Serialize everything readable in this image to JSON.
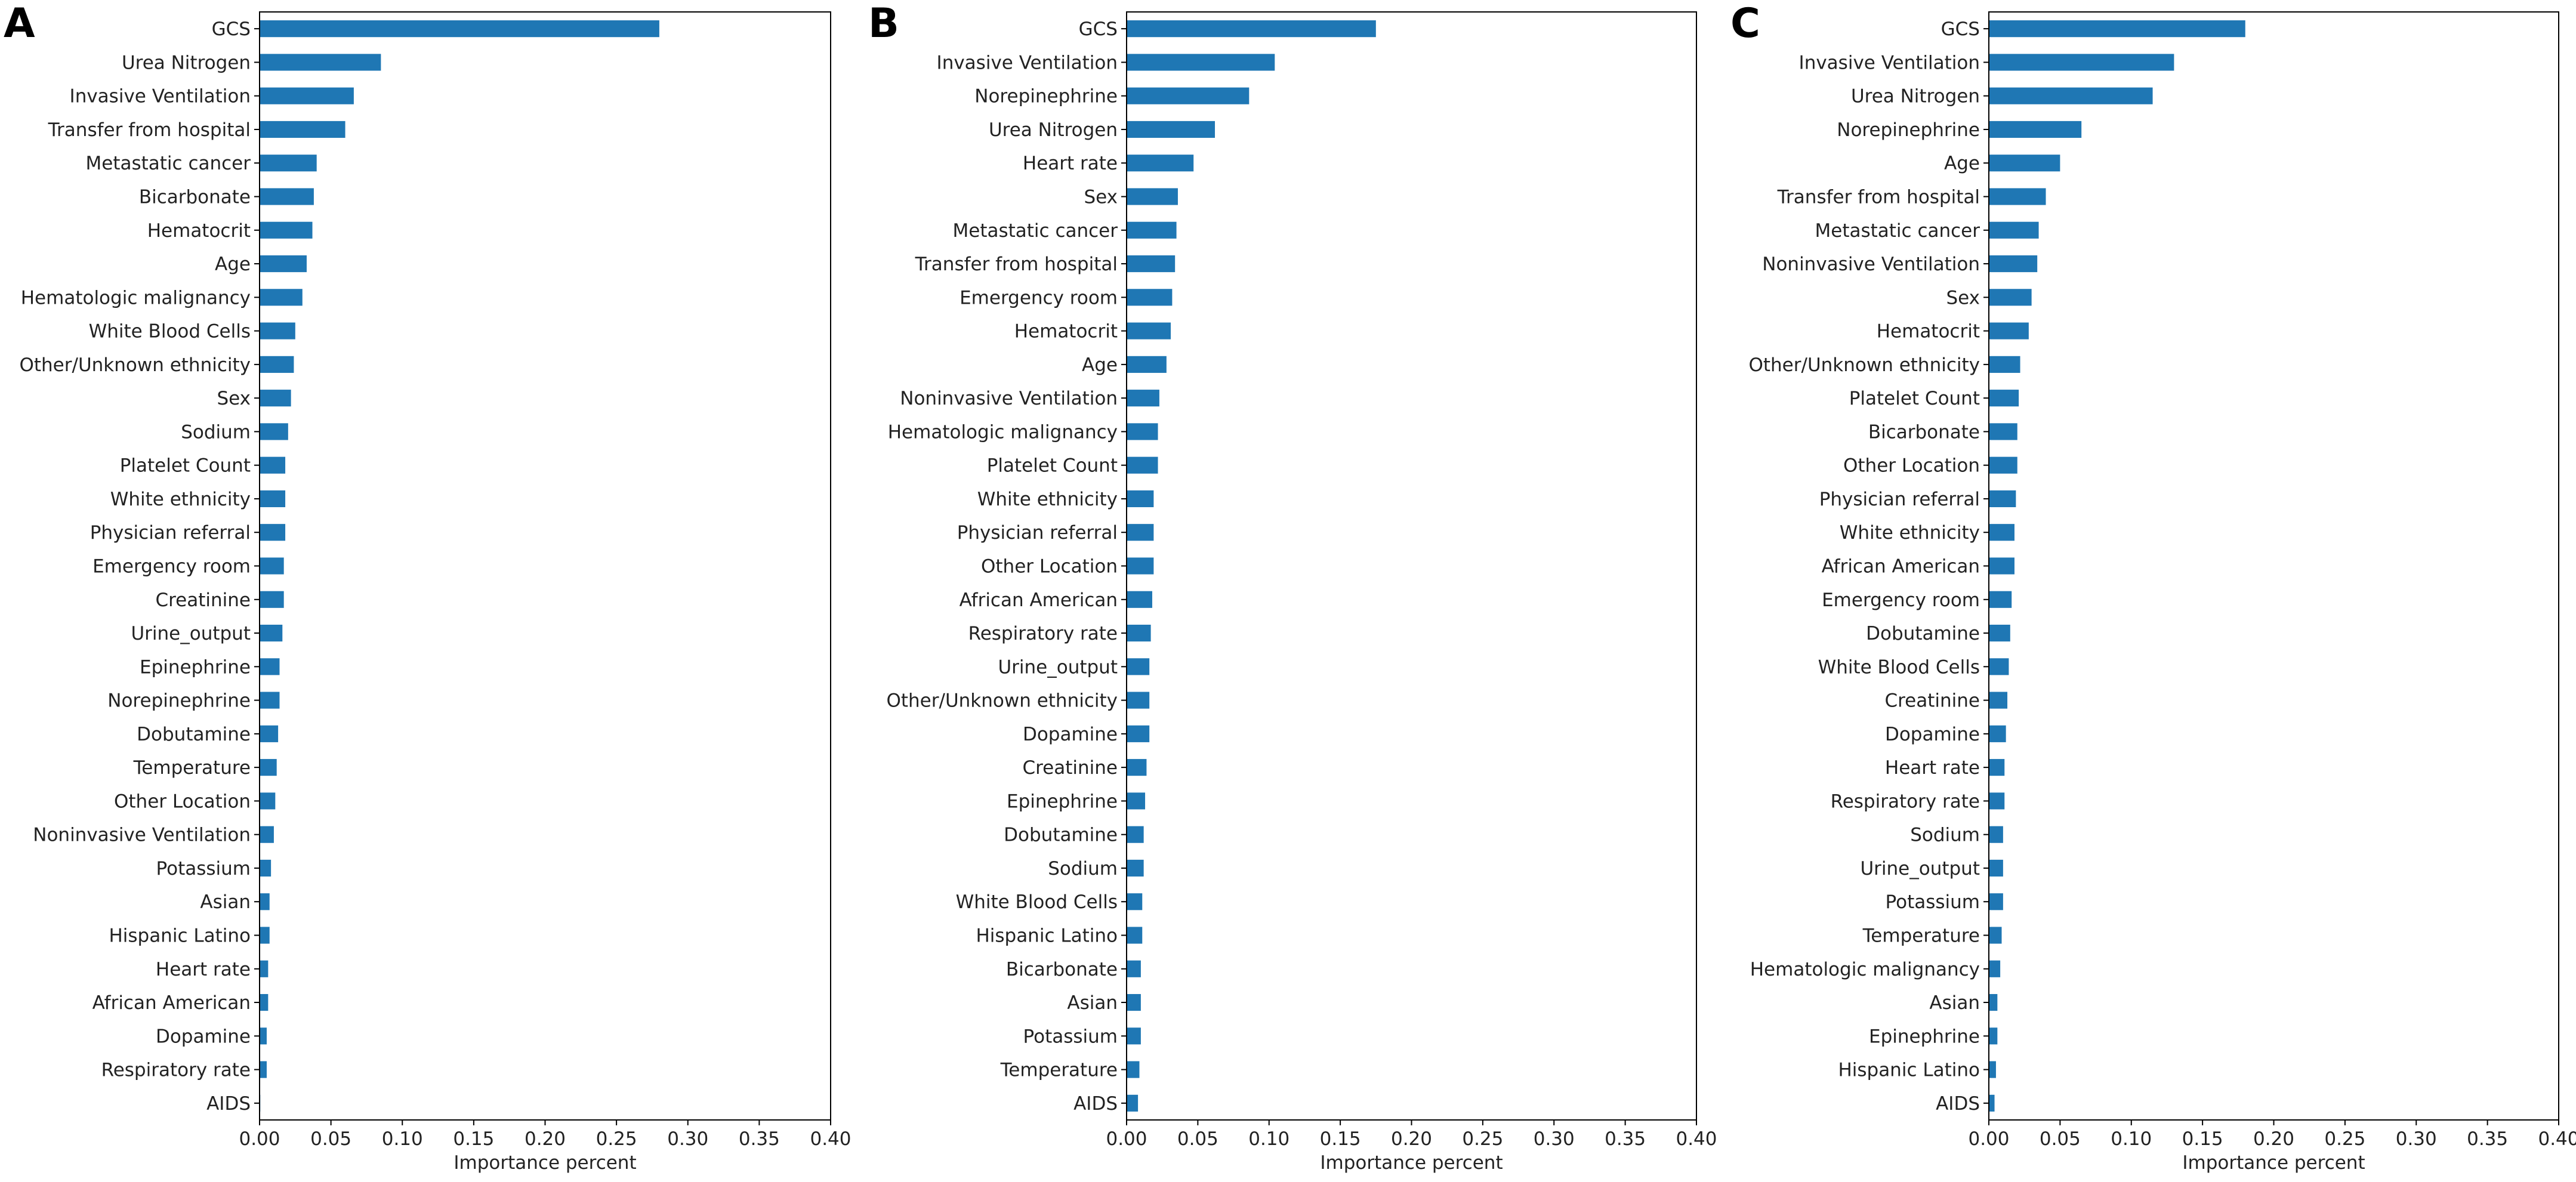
{
  "chart_data": [
    {
      "type": "bar",
      "orientation": "horizontal",
      "panel_label": "A",
      "xlabel": "Importance percent",
      "ylabel": "",
      "xlim": [
        0,
        0.4
      ],
      "xticks": [
        "0.00",
        "0.05",
        "0.10",
        "0.15",
        "0.20",
        "0.25",
        "0.30",
        "0.35",
        "0.40"
      ],
      "bar_color": "#1f77b4",
      "categories": [
        "GCS",
        "Urea Nitrogen",
        "Invasive Ventilation",
        "Transfer from hospital",
        "Metastatic cancer",
        "Bicarbonate",
        "Hematocrit",
        "Age",
        "Hematologic malignancy",
        "White Blood Cells",
        "Other/Unknown ethnicity",
        "Sex",
        "Sodium",
        "Platelet Count",
        "White ethnicity",
        "Physician referral",
        "Emergency room",
        "Creatinine",
        "Urine_output",
        "Epinephrine",
        "Norepinephrine",
        "Dobutamine",
        "Temperature",
        "Other Location",
        "Noninvasive Ventilation",
        "Potassium",
        "Asian",
        "Hispanic Latino",
        "Heart rate",
        "African American",
        "Dopamine",
        "Respiratory rate",
        "AIDS"
      ],
      "values": [
        0.28,
        0.085,
        0.066,
        0.06,
        0.04,
        0.038,
        0.037,
        0.033,
        0.03,
        0.025,
        0.024,
        0.022,
        0.02,
        0.018,
        0.018,
        0.018,
        0.017,
        0.017,
        0.016,
        0.014,
        0.014,
        0.013,
        0.012,
        0.011,
        0.01,
        0.008,
        0.007,
        0.007,
        0.006,
        0.006,
        0.005,
        0.005,
        0.0005
      ]
    },
    {
      "type": "bar",
      "orientation": "horizontal",
      "panel_label": "B",
      "xlabel": "Importance percent",
      "ylabel": "",
      "xlim": [
        0,
        0.4
      ],
      "xticks": [
        "0.00",
        "0.05",
        "0.10",
        "0.15",
        "0.20",
        "0.25",
        "0.30",
        "0.35",
        "0.40"
      ],
      "bar_color": "#1f77b4",
      "categories": [
        "GCS",
        "Invasive Ventilation",
        "Norepinephrine",
        "Urea Nitrogen",
        "Heart rate",
        "Sex",
        "Metastatic cancer",
        "Transfer from hospital",
        "Emergency room",
        "Hematocrit",
        "Age",
        "Noninvasive Ventilation",
        "Hematologic malignancy",
        "Platelet Count",
        "White ethnicity",
        "Physician referral",
        "Other Location",
        "African American",
        "Respiratory rate",
        "Urine_output",
        "Other/Unknown ethnicity",
        "Dopamine",
        "Creatinine",
        "Epinephrine",
        "Dobutamine",
        "Sodium",
        "White Blood Cells",
        "Hispanic Latino",
        "Bicarbonate",
        "Asian",
        "Potassium",
        "Temperature",
        "AIDS"
      ],
      "values": [
        0.175,
        0.104,
        0.086,
        0.062,
        0.047,
        0.036,
        0.035,
        0.034,
        0.032,
        0.031,
        0.028,
        0.023,
        0.022,
        0.022,
        0.019,
        0.019,
        0.019,
        0.018,
        0.017,
        0.016,
        0.016,
        0.016,
        0.014,
        0.013,
        0.012,
        0.012,
        0.011,
        0.011,
        0.01,
        0.01,
        0.01,
        0.009,
        0.008
      ]
    },
    {
      "type": "bar",
      "orientation": "horizontal",
      "panel_label": "C",
      "xlabel": "Importance percent",
      "ylabel": "",
      "xlim": [
        0,
        0.4
      ],
      "xticks": [
        "0.00",
        "0.05",
        "0.10",
        "0.15",
        "0.20",
        "0.25",
        "0.30",
        "0.35",
        "0.40"
      ],
      "bar_color": "#1f77b4",
      "categories": [
        "GCS",
        "Invasive Ventilation",
        "Urea Nitrogen",
        "Norepinephrine",
        "Age",
        "Transfer from hospital",
        "Metastatic cancer",
        "Noninvasive Ventilation",
        "Sex",
        "Hematocrit",
        "Other/Unknown ethnicity",
        "Platelet Count",
        "Bicarbonate",
        "Other Location",
        "Physician referral",
        "White ethnicity",
        "African American",
        "Emergency room",
        "Dobutamine",
        "White Blood Cells",
        "Creatinine",
        "Dopamine",
        "Heart rate",
        "Respiratory rate",
        "Sodium",
        "Urine_output",
        "Potassium",
        "Temperature",
        "Hematologic malignancy",
        "Asian",
        "Epinephrine",
        "Hispanic Latino",
        "AIDS"
      ],
      "values": [
        0.18,
        0.13,
        0.115,
        0.065,
        0.05,
        0.04,
        0.035,
        0.034,
        0.03,
        0.028,
        0.022,
        0.021,
        0.02,
        0.02,
        0.019,
        0.018,
        0.018,
        0.016,
        0.015,
        0.014,
        0.013,
        0.012,
        0.011,
        0.011,
        0.01,
        0.01,
        0.01,
        0.009,
        0.008,
        0.006,
        0.006,
        0.005,
        0.004
      ]
    }
  ]
}
